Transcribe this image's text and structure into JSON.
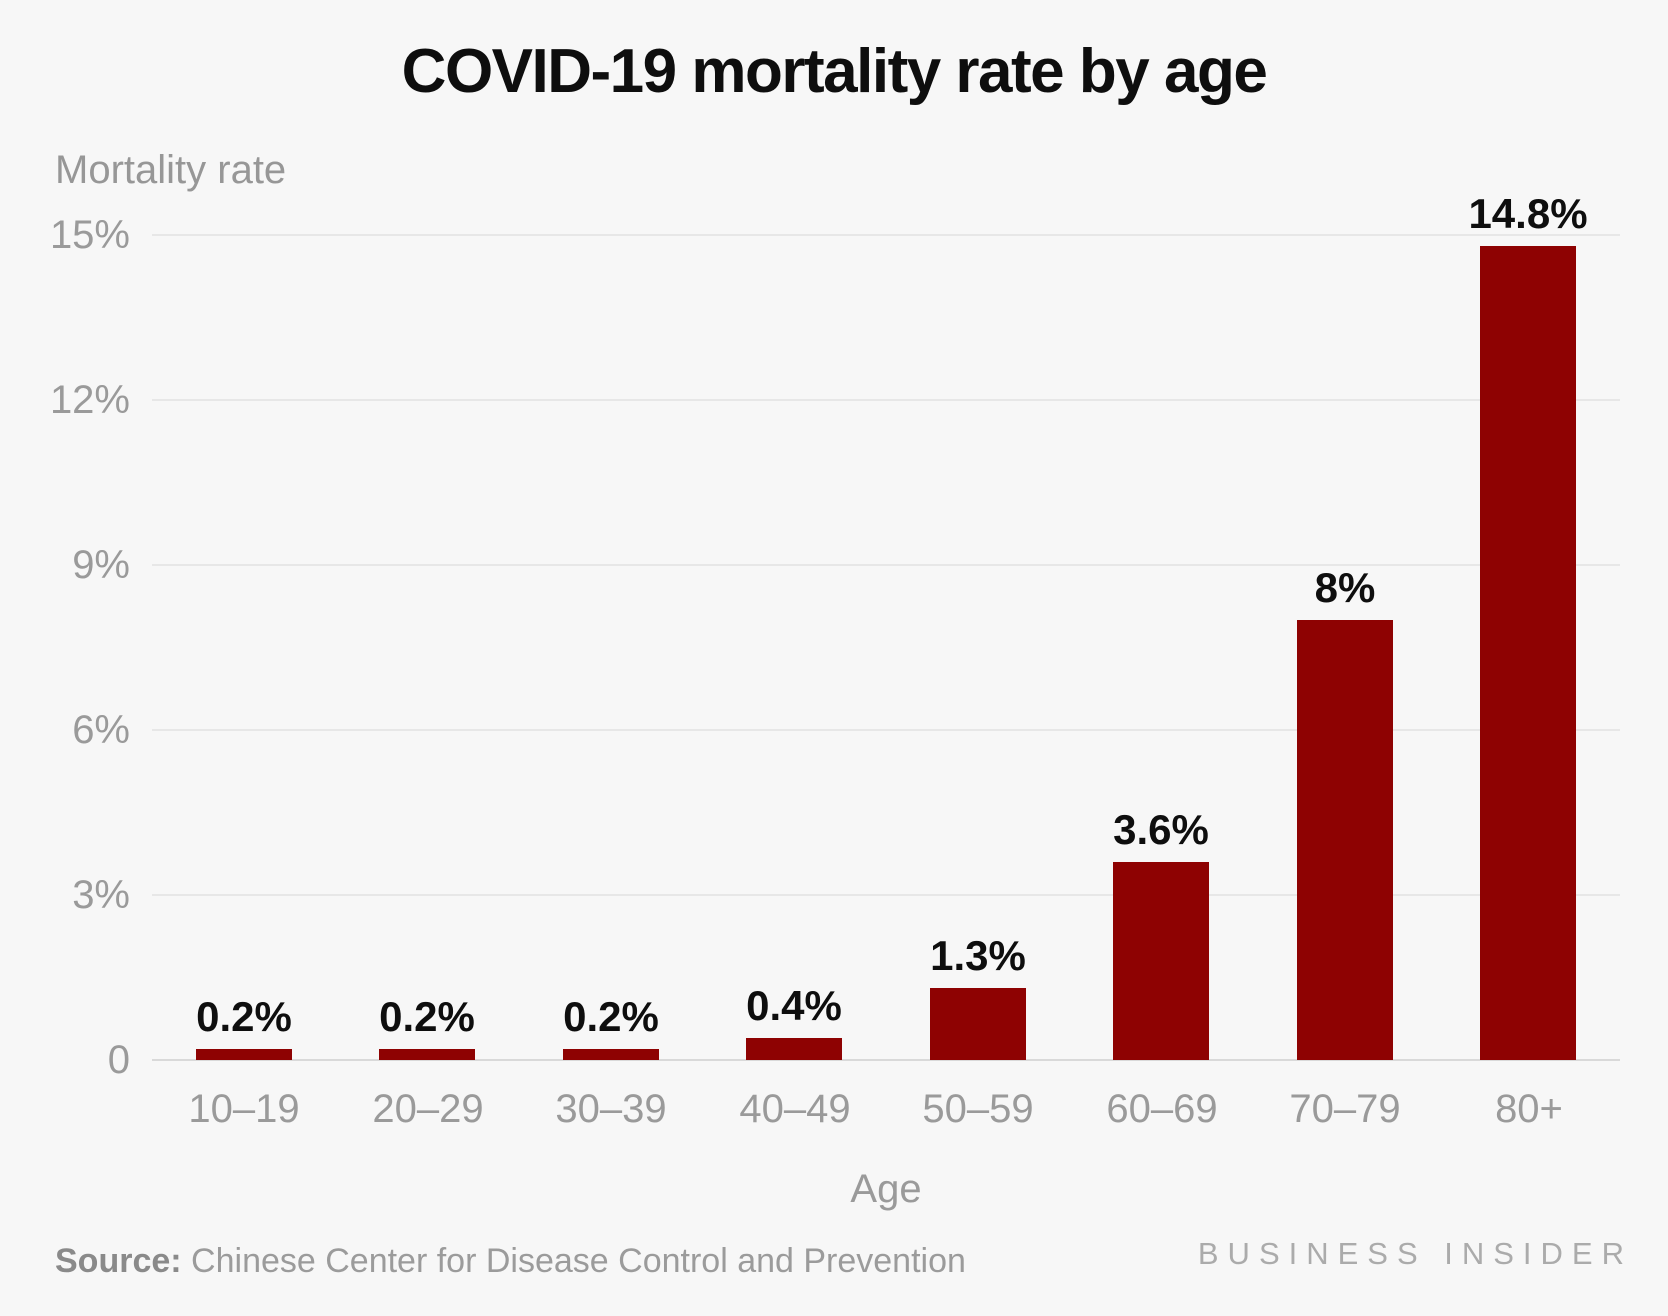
{
  "title": "COVID-19 mortality rate by age",
  "chart_data": {
    "type": "bar",
    "title": "COVID-19 mortality rate by age",
    "xlabel": "Age",
    "ylabel": "Mortality rate",
    "categories": [
      "10–19",
      "20–29",
      "30–39",
      "40–49",
      "50–59",
      "60–69",
      "70–79",
      "80+"
    ],
    "values": [
      0.2,
      0.2,
      0.2,
      0.4,
      1.3,
      3.6,
      8,
      14.8
    ],
    "value_labels": [
      "0.2%",
      "0.2%",
      "0.2%",
      "0.4%",
      "1.3%",
      "3.6%",
      "8%",
      "14.8%"
    ],
    "ylim": [
      0,
      15
    ],
    "yticks": {
      "values": [
        0,
        3,
        6,
        9,
        12,
        15
      ],
      "labels": [
        "0",
        "3%",
        "6%",
        "9%",
        "12%",
        "15%"
      ]
    },
    "grid": "horizontal",
    "legend": "none",
    "bar_color": "#8e0202",
    "background_color": "#f7f7f7",
    "label_color": "#0e0e0e",
    "axis_text_color": "#9a9a9a"
  },
  "footer": {
    "source_label": "Source:",
    "source_text": "Chinese Center for Disease Control and Prevention",
    "brand": "BUSINESS INSIDER"
  }
}
